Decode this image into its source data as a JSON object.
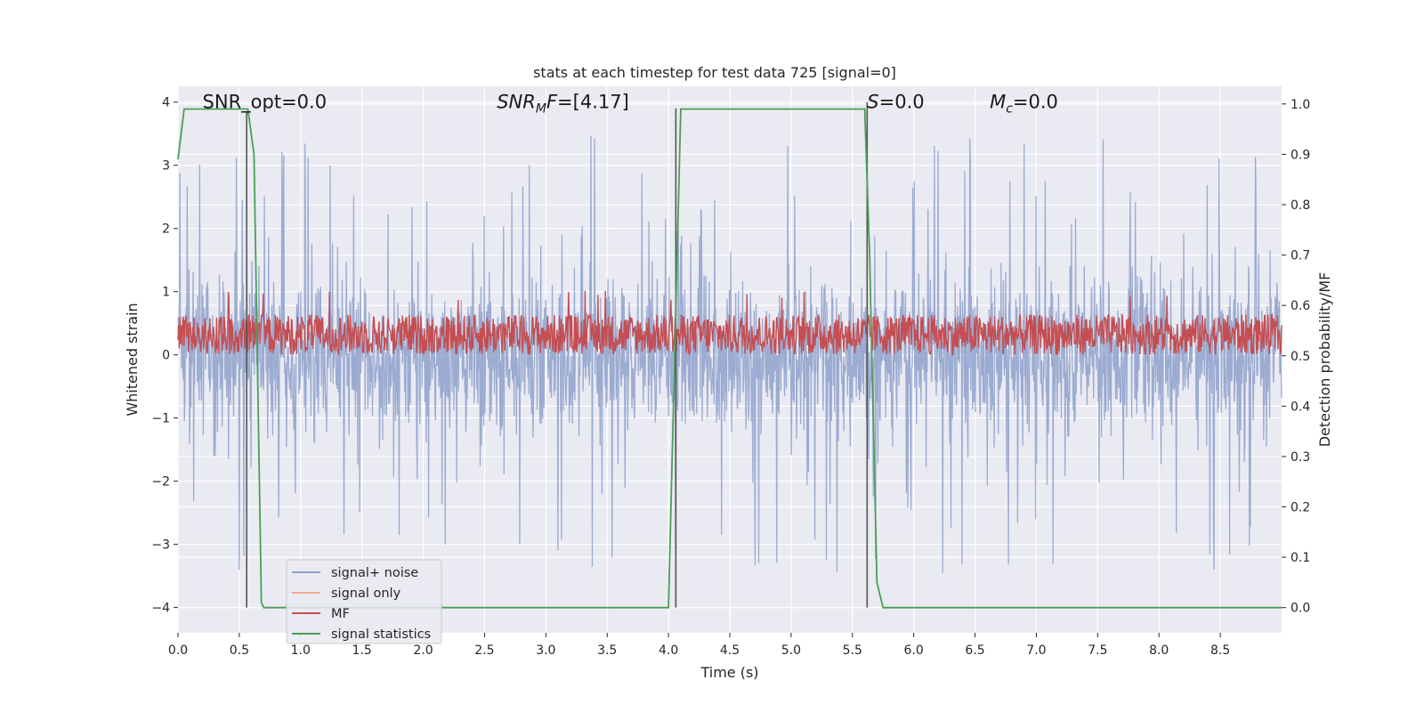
{
  "chart_data": {
    "type": "line",
    "title": "stats at each timestep for test data 725 [signal=0]",
    "xlabel": "Time (s)",
    "ylabel": "Whitened strain",
    "ylabel_right": "Detection probability/MF",
    "xlim": [
      0,
      9
    ],
    "ylim": [
      -4.4,
      4.25
    ],
    "ylim_right": [
      -0.05,
      1.035
    ],
    "x_ticks": [
      "0.0",
      "0.5",
      "1.0",
      "1.5",
      "2.0",
      "2.5",
      "3.0",
      "3.5",
      "4.0",
      "4.5",
      "5.0",
      "5.5",
      "6.0",
      "6.5",
      "7.0",
      "7.5",
      "8.0",
      "8.5"
    ],
    "y_ticks": [
      "4",
      "3",
      "2",
      "1",
      "0",
      "−1",
      "−2",
      "−3",
      "−4"
    ],
    "y_ticks_right": [
      "1.0",
      "0.9",
      "0.8",
      "0.7",
      "0.6",
      "0.5",
      "0.4",
      "0.3",
      "0.2",
      "0.1",
      "0.0"
    ],
    "grid": true,
    "legend_placement": "lower-left",
    "annotations": [
      {
        "text": "SNR_opt=0.0",
        "x": 0.2
      },
      {
        "text": "SNR",
        "sub": "M",
        "tail": "F=[4.17]",
        "x": 2.6
      },
      {
        "text": "S",
        "tail": "=0.0",
        "x": 5.62
      },
      {
        "text": "M",
        "sub": "c",
        "tail": "=0.0",
        "x": 6.62
      }
    ],
    "series": [
      {
        "name": "signal+ noise",
        "color": "#8da0cb",
        "style": "noise",
        "sigma": 0.62,
        "spike_max": 3.6,
        "spike_min": -3.6
      },
      {
        "name": "signal only",
        "color": "#f0a88a",
        "style": "flat",
        "values": []
      },
      {
        "name": "MF",
        "color": "#c44e52",
        "style": "noise-band",
        "center": 0.32,
        "amplitude": 0.32
      },
      {
        "name": "signal statistics",
        "color": "#4a9e55",
        "axis": "right",
        "x": [
          0.0,
          0.05,
          0.5,
          0.57,
          0.62,
          0.68,
          0.7,
          0.75,
          1.0,
          3.9,
          4.0,
          4.1,
          4.5,
          4.8,
          5.5,
          5.6,
          5.64,
          5.7,
          5.75,
          6.0,
          9.0
        ],
        "y": [
          0.89,
          0.99,
          0.99,
          0.99,
          0.9,
          0.01,
          0.0,
          0.0,
          0.0,
          0.0,
          0.0,
          0.99,
          0.99,
          0.99,
          0.99,
          0.99,
          0.7,
          0.05,
          0.0,
          0.0,
          0.0
        ]
      }
    ],
    "vlines": [
      {
        "x": 0.56,
        "y0": -4.0,
        "y1": 3.85,
        "color": "#555555"
      },
      {
        "x": 4.06,
        "y0": -4.0,
        "y1": 3.9,
        "color": "#555555"
      },
      {
        "x": 5.62,
        "y0": -4.0,
        "y1": 4.0,
        "color": "#555555"
      }
    ],
    "colors": {
      "plot_bg": "#eaeaf2",
      "grid": "#ffffff",
      "text": "#262626"
    }
  }
}
